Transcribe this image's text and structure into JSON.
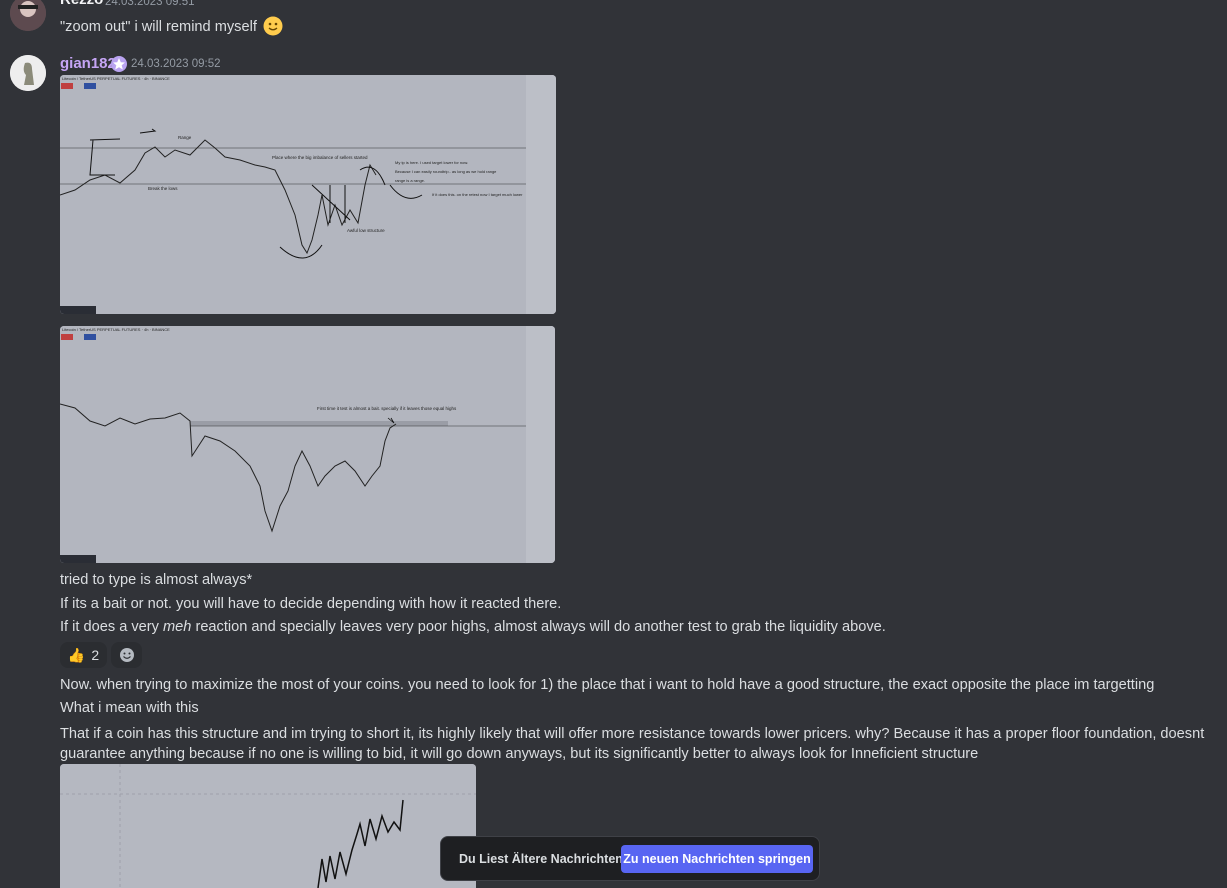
{
  "messages": [
    {
      "author": "Rezzo",
      "timestamp": "24.03.2023 09:51",
      "text": "\"zoom out\" i will remind myself"
    },
    {
      "author": "gian182",
      "timestamp": "24.03.2023 09:52",
      "images": [
        {
          "title": "Litecoin / TetherUS PERPETUAL FUTURES · 4h · BINANCE",
          "annotations": [
            "Range",
            "Break the lows",
            "Place where the big imbalance of sellers started",
            "My tp is here. I used target lower for now.",
            "Because I can easily roundtrip.. as long as we hold range",
            "range is a range.",
            "If it does this. on the retest now I target much lower",
            "Awful low structure"
          ]
        },
        {
          "title": "Litecoin / TetherUS PERPETUAL FUTURES · 4h · BINANCE",
          "annotations": [
            "First time it test is almost a bait. specially if it leaves those equal highs"
          ]
        }
      ],
      "lines": [
        "tried to type is almost always*",
        "If its a bait or not. you will have to decide depending with how it reacted there."
      ],
      "emphasis_line": [
        "If it does a very ",
        "meh",
        " reaction and specially leaves very poor highs, almost always will do another test to grab the liquidity above."
      ],
      "reactions": [
        {
          "emoji": "👍",
          "count": 2
        }
      ],
      "lines_after": [
        "Now. when trying to maximize the most of your coins. you need to look for 1) the place that i want to hold have a good structure, the exact opposite the place im targetting",
        "What i mean with this",
        "That if a coin has this structure and im trying to short it,  its highly likely that will offer more resistance towards lower pricers. why? Because it has a proper floor foundation, doesnt guarantee anything because if no one is willing to bid, it will go down anyways, but its significantly better to always look for Inneficient structure"
      ]
    }
  ],
  "toast": {
    "text": "Du Liest Ältere Nachrichten",
    "button": "Zu neuen Nachrichten springen"
  }
}
